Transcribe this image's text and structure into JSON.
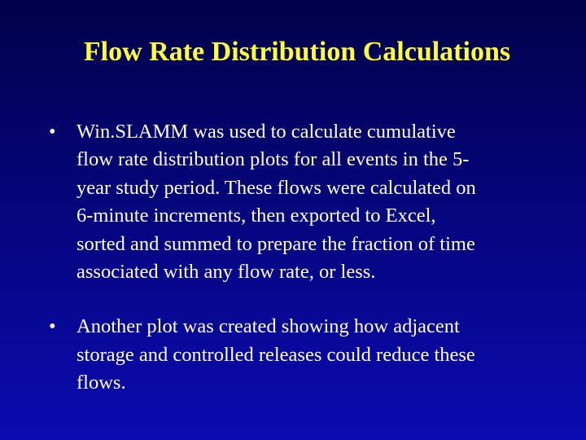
{
  "slide": {
    "title": "Flow Rate Distribution Calculations",
    "bullet_glyph": "•",
    "bullets": [
      {
        "lines": [
          "Win.SLAMM was used to calculate cumulative",
          "flow rate distribution plots for all events in the 5-",
          "year study period. These flows were calculated on",
          "6-minute increments, then exported to Excel,",
          "sorted and summed to prepare the fraction of time",
          "associated with any flow rate, or less."
        ]
      },
      {
        "lines": [
          "Another plot was created showing how adjacent",
          "storage and controlled releases could reduce these",
          "flows."
        ]
      }
    ]
  },
  "colors": {
    "background_top": "#01014a",
    "background_bottom": "#0b0bb0",
    "title": "#ffff33",
    "body_text": "#ffffff"
  }
}
